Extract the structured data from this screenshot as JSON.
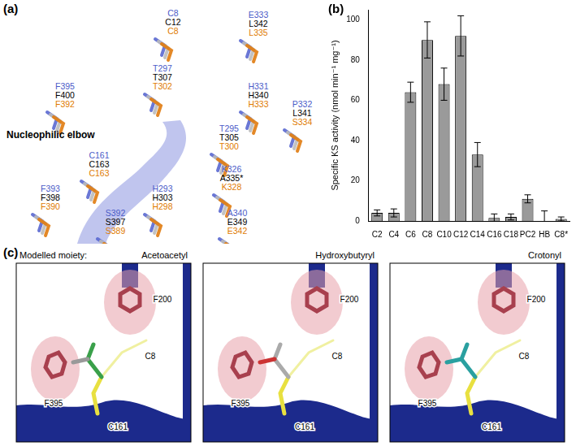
{
  "panel_a": {
    "label": "(a)",
    "annotation": "Nucleophilic elbow",
    "residues": [
      {
        "blue": "C8",
        "black": "C12",
        "orange": "C8"
      },
      {
        "blue": "E333",
        "black": "L342",
        "orange": "L335"
      },
      {
        "blue": "F395",
        "black": "F400",
        "orange": "F392"
      },
      {
        "blue": "T297",
        "black": "T307",
        "orange": "T302"
      },
      {
        "blue": "H331",
        "black": "H340",
        "orange": "H333"
      },
      {
        "blue": "P332",
        "black": "L341",
        "orange": "S334"
      },
      {
        "blue": "T295",
        "black": "T305",
        "orange": "T300"
      },
      {
        "blue": "K326",
        "black": "A335*",
        "orange": "K328"
      },
      {
        "blue": "C161",
        "black": "C163",
        "orange": "C163"
      },
      {
        "blue": "H293",
        "black": "H303",
        "orange": "H298"
      },
      {
        "blue": "F393",
        "black": "F398",
        "orange": "F390"
      },
      {
        "blue": "S392",
        "black": "S397",
        "orange": "S389"
      },
      {
        "blue": "A340",
        "black": "E349",
        "orange": "E342"
      }
    ]
  },
  "panel_b_label": "(b)",
  "chart_data": {
    "type": "bar",
    "ylabel": "Specific KS activity (nmol min⁻¹ mg⁻¹)",
    "categories": [
      "C2",
      "C4",
      "C6",
      "C8",
      "C10",
      "C12",
      "C14",
      "C16",
      "C18",
      "PC2",
      "HB",
      "C8*"
    ],
    "values": [
      4,
      4,
      64,
      90,
      68,
      92,
      33,
      1.5,
      2,
      11,
      0,
      1
    ],
    "errors": [
      1.5,
      2,
      5,
      9,
      8,
      10,
      6,
      2,
      1.5,
      2,
      5,
      1
    ],
    "color": "#9a9a9a",
    "ylim": [
      0,
      105
    ],
    "yticks": [
      0,
      20,
      40,
      60,
      80,
      100
    ],
    "grid": false
  },
  "panel_c": {
    "label": "(c)",
    "heading": "Modelled moiety:",
    "views": [
      {
        "moiety": "Acetoacetyl",
        "residues": [
          "F200",
          "F395",
          "C8",
          "C161"
        ]
      },
      {
        "moiety": "Hydroxybutyryl",
        "residues": [
          "F200",
          "F395",
          "C8",
          "C161"
        ]
      },
      {
        "moiety": "Crotonyl",
        "residues": [
          "F200",
          "F395",
          "C8",
          "C161"
        ]
      }
    ]
  }
}
